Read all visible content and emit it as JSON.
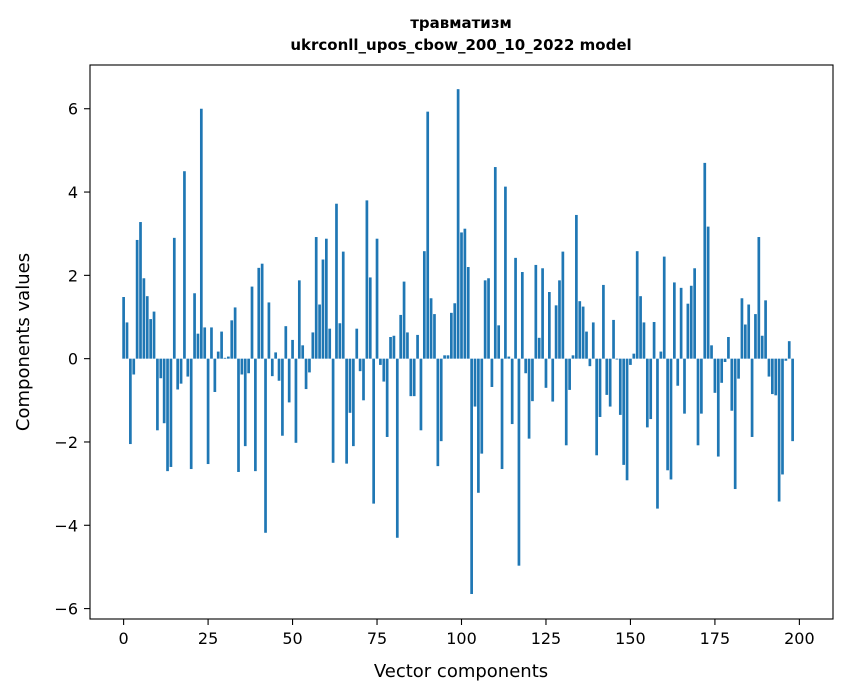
{
  "chart_data": {
    "type": "bar",
    "title_line1": "травматизм",
    "title_line2": "ukrconll_upos_cbow_200_10_2022 model",
    "xlabel": "Vector components",
    "ylabel": "Components values",
    "xlim": [
      -9.95,
      209.95
    ],
    "ylim": [
      -6.25,
      7.05
    ],
    "xticks": [
      0,
      25,
      50,
      75,
      100,
      125,
      150,
      175,
      200
    ],
    "xtick_labels": [
      "0",
      "25",
      "50",
      "75",
      "100",
      "125",
      "150",
      "175",
      "200"
    ],
    "yticks": [
      -6,
      -4,
      -2,
      0,
      2,
      4,
      6
    ],
    "ytick_labels": [
      "−6",
      "−4",
      "−2",
      "0",
      "2",
      "4",
      "6"
    ],
    "bar_color": "#1f77b4",
    "grid": false,
    "x_start": 0,
    "values": [
      1.48,
      0.87,
      -2.05,
      -0.38,
      2.85,
      3.28,
      1.93,
      1.5,
      0.95,
      1.13,
      -1.72,
      -0.47,
      -1.55,
      -2.7,
      -2.6,
      2.9,
      -0.74,
      -0.6,
      4.5,
      -0.43,
      -2.65,
      1.57,
      0.6,
      6.0,
      0.75,
      -2.53,
      0.75,
      -0.8,
      0.17,
      0.65,
      0.02,
      0.05,
      0.92,
      1.23,
      -2.72,
      -0.38,
      -2.1,
      -0.35,
      1.73,
      -2.7,
      2.18,
      2.28,
      -4.18,
      1.35,
      -0.42,
      0.15,
      -0.53,
      -1.85,
      0.78,
      -1.05,
      0.45,
      -2.02,
      1.88,
      0.32,
      -0.73,
      -0.33,
      0.63,
      2.92,
      1.3,
      2.38,
      2.88,
      0.72,
      -2.5,
      3.72,
      0.85,
      2.57,
      -2.52,
      -1.3,
      -2.1,
      0.72,
      -0.3,
      -1.0,
      3.8,
      1.95,
      -3.48,
      2.88,
      -0.15,
      -0.55,
      -1.88,
      0.52,
      0.55,
      -4.3,
      1.05,
      1.85,
      0.63,
      -0.9,
      -0.9,
      0.57,
      -1.72,
      2.58,
      5.93,
      1.45,
      1.07,
      -2.58,
      -1.98,
      0.08,
      0.08,
      1.1,
      1.33,
      6.47,
      3.03,
      3.12,
      2.2,
      -5.65,
      -1.15,
      -3.22,
      -2.28,
      1.88,
      1.93,
      -0.68,
      4.6,
      0.8,
      -2.65,
      4.13,
      0.05,
      -1.57,
      2.42,
      -4.97,
      2.08,
      -0.35,
      -1.92,
      -1.02,
      2.25,
      0.5,
      2.17,
      -0.7,
      1.6,
      -1.03,
      1.28,
      1.88,
      2.57,
      -2.08,
      -0.75,
      0.08,
      3.45,
      1.38,
      1.25,
      0.65,
      -0.18,
      0.87,
      -2.32,
      -1.4,
      1.77,
      -0.87,
      -1.15,
      0.93,
      -0.02,
      -1.35,
      -2.55,
      -2.92,
      -0.15,
      0.12,
      2.58,
      1.5,
      0.87,
      -1.65,
      -1.45,
      0.88,
      -3.6,
      0.17,
      2.45,
      -2.68,
      -2.9,
      1.83,
      -0.65,
      1.7,
      -1.32,
      1.32,
      1.75,
      2.17,
      -2.08,
      -1.32,
      4.7,
      3.17,
      0.32,
      -0.82,
      -2.35,
      -0.58,
      -0.08,
      0.52,
      -1.25,
      -3.13,
      -0.48,
      1.45,
      0.82,
      1.3,
      -1.88,
      1.07,
      2.92,
      0.55,
      1.4,
      -0.43,
      -0.85,
      -0.88,
      -3.43,
      -2.78,
      -0.05,
      0.42,
      -1.98
    ]
  }
}
